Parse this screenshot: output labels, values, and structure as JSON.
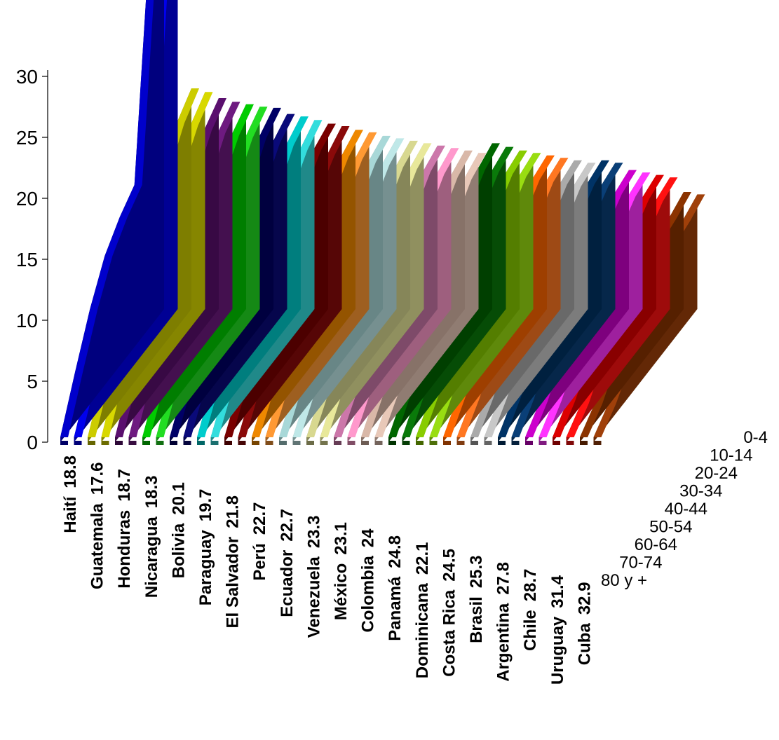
{
  "chart_data": {
    "type": "area",
    "view": "3d-stacked-ribbons",
    "title": "",
    "xlabel": "",
    "ylabel": "",
    "ylim": [
      0,
      33
    ],
    "y_ticks": [
      "0",
      "5",
      "10",
      "15",
      "20",
      "25",
      "30"
    ],
    "depth_ticks": [
      "0-4",
      "10-14",
      "20-24",
      "30-34",
      "40-44",
      "50-54",
      "60-64",
      "70-74",
      "80 y +"
    ],
    "grid": false,
    "legend": "none",
    "categories": [
      {
        "label": "Haití",
        "value": "18.8",
        "color": "#0000cc"
      },
      {
        "label": "Guatemala",
        "value": "17.6",
        "color": "#0000ee"
      },
      {
        "label": "Honduras",
        "value": "18.7",
        "color": "#cccc00"
      },
      {
        "label": "Nicaragua",
        "value": "18.3",
        "color": "#d8d800"
      },
      {
        "label": "Bolivia",
        "value": "20.1",
        "color": "#5a0f6e"
      },
      {
        "label": "Paraguay",
        "value": "19.7",
        "color": "#6e1a80"
      },
      {
        "label": "El Salvador",
        "value": "21.8",
        "color": "#00cc00"
      },
      {
        "label": "Perú",
        "value": "22.7",
        "color": "#22dd22"
      },
      {
        "label": "Ecuador",
        "value": "22.7",
        "color": "#000066"
      },
      {
        "label": "Venezuela",
        "value": "23.3",
        "color": "#0a0a7a"
      },
      {
        "label": "México",
        "value": "23.1",
        "color": "#00cccc"
      },
      {
        "label": "Colombia",
        "value": "24",
        "color": "#33dddd"
      },
      {
        "label": "Panamá",
        "value": "24.8",
        "color": "#7a0000"
      },
      {
        "label": "Dominicana",
        "value": "22.1",
        "color": "#8a0a0a"
      },
      {
        "label": "Costa Rica",
        "value": "24.5",
        "color": "#ee8800"
      },
      {
        "label": "Brasil",
        "value": "25.3",
        "color": "#ff9933"
      },
      {
        "label": "Argentina",
        "value": "27.8",
        "color": "#a8d8d8"
      },
      {
        "label": "Chile",
        "value": "28.7",
        "color": "#bfe8e8"
      },
      {
        "label": "Uruguay",
        "value": "31.4",
        "color": "#d8d890"
      },
      {
        "label": "Cuba",
        "value": "32.9",
        "color": "#e8e89a"
      }
    ],
    "ribbons": [
      {
        "color": "#0000cc",
        "values": [
          0.4,
          4.2,
          7.8,
          10.6,
          12.2,
          13.3,
          31.3,
          33.0
        ]
      },
      {
        "color": "#0000ee",
        "values": [
          0.4,
          3.8,
          7.4,
          10.6,
          12.2,
          13.5,
          32.0,
          33.0
        ]
      },
      {
        "color": "#cccc00",
        "values": [
          0.4,
          3.8,
          7.0,
          10.0,
          12.4,
          14.4,
          16.8,
          18.1
        ]
      },
      {
        "color": "#d8d800",
        "values": [
          0.4,
          3.8,
          7.0,
          10.0,
          12.4,
          14.4,
          16.6,
          17.8
        ]
      },
      {
        "color": "#5a0f6e",
        "values": [
          0.4,
          3.6,
          6.8,
          9.8,
          12.0,
          14.0,
          16.2,
          17.3
        ]
      },
      {
        "color": "#6e1a80",
        "values": [
          0.4,
          3.6,
          6.8,
          9.8,
          12.0,
          13.8,
          16.0,
          17.0
        ]
      },
      {
        "color": "#00cc00",
        "values": [
          0.4,
          3.4,
          6.6,
          9.6,
          11.8,
          13.8,
          15.8,
          16.8
        ]
      },
      {
        "color": "#22dd22",
        "values": [
          0.4,
          3.4,
          6.6,
          9.6,
          11.8,
          13.6,
          15.6,
          16.6
        ]
      },
      {
        "color": "#000066",
        "values": [
          0.4,
          3.2,
          6.4,
          9.2,
          11.4,
          13.4,
          15.6,
          16.5
        ]
      },
      {
        "color": "#0a0a7a",
        "values": [
          0.4,
          3.2,
          6.2,
          9.2,
          11.4,
          13.2,
          15.2,
          16.0
        ]
      },
      {
        "color": "#00cccc",
        "values": [
          0.4,
          3.2,
          6.2,
          9.0,
          11.2,
          13.0,
          15.0,
          15.8
        ]
      },
      {
        "color": "#33dddd",
        "values": [
          0.4,
          3.0,
          6.0,
          9.0,
          11.0,
          12.8,
          14.6,
          15.5
        ]
      },
      {
        "color": "#7a0000",
        "values": [
          0.4,
          3.0,
          5.8,
          8.8,
          11.4,
          13.0,
          14.6,
          15.2
        ]
      },
      {
        "color": "#8a0a0a",
        "values": [
          0.4,
          3.0,
          5.8,
          8.8,
          11.2,
          12.8,
          14.2,
          15.0
        ]
      },
      {
        "color": "#ee8800",
        "values": [
          0.4,
          2.8,
          5.6,
          8.6,
          10.6,
          12.4,
          14.0,
          14.7
        ]
      },
      {
        "color": "#ff9933",
        "values": [
          0.4,
          2.8,
          5.6,
          8.4,
          10.4,
          12.2,
          13.8,
          14.5
        ]
      },
      {
        "color": "#a8d8d8",
        "values": [
          0.4,
          2.8,
          5.4,
          8.2,
          10.4,
          12.0,
          13.6,
          14.2
        ]
      },
      {
        "color": "#bfe8e8",
        "values": [
          0.4,
          2.6,
          5.2,
          8.0,
          10.2,
          11.8,
          13.4,
          14.0
        ]
      },
      {
        "color": "#d8d890",
        "values": [
          0.4,
          2.6,
          5.2,
          8.0,
          10.0,
          11.6,
          13.2,
          13.8
        ]
      },
      {
        "color": "#e8e89a",
        "values": [
          0.4,
          2.6,
          5.0,
          7.8,
          9.8,
          11.4,
          13.0,
          13.6
        ]
      },
      {
        "color": "#cc77aa",
        "values": [
          0.4,
          2.4,
          4.8,
          7.6,
          9.6,
          11.2,
          12.8,
          13.4
        ]
      },
      {
        "color": "#ff99cc",
        "values": [
          0.4,
          2.4,
          4.8,
          7.4,
          9.4,
          11.0,
          12.6,
          13.2
        ]
      },
      {
        "color": "#d9b8a8",
        "values": [
          0.4,
          2.4,
          4.6,
          7.2,
          9.2,
          10.8,
          12.4,
          13.0
        ]
      },
      {
        "color": "#e8c8b8",
        "values": [
          0.4,
          2.2,
          4.6,
          7.2,
          9.0,
          10.6,
          12.2,
          12.8
        ]
      },
      {
        "color": "#006600",
        "values": [
          0.4,
          2.4,
          5.0,
          8.0,
          10.2,
          11.6,
          13.0,
          13.6
        ]
      },
      {
        "color": "#0a7a0a",
        "values": [
          0.4,
          2.4,
          5.0,
          7.8,
          10.0,
          11.4,
          12.8,
          13.3
        ]
      },
      {
        "color": "#88cc00",
        "values": [
          0.4,
          2.2,
          4.8,
          7.6,
          9.6,
          11.2,
          12.6,
          13.0
        ]
      },
      {
        "color": "#99dd11",
        "values": [
          0.4,
          2.2,
          4.6,
          7.4,
          9.4,
          11.0,
          12.4,
          12.8
        ]
      },
      {
        "color": "#ff6600",
        "values": [
          0.4,
          2.2,
          4.4,
          7.0,
          9.0,
          10.8,
          12.2,
          12.6
        ]
      },
      {
        "color": "#ff7722",
        "values": [
          0.4,
          2.0,
          4.2,
          6.8,
          8.8,
          10.6,
          12.0,
          12.4
        ]
      },
      {
        "color": "#aaaaaa",
        "values": [
          0.4,
          2.0,
          4.2,
          6.6,
          8.6,
          10.4,
          11.8,
          12.2
        ]
      },
      {
        "color": "#c8c8c8",
        "values": [
          0.4,
          2.0,
          4.0,
          6.4,
          8.4,
          10.2,
          11.6,
          12.0
        ]
      },
      {
        "color": "#003366",
        "values": [
          0.4,
          2.0,
          4.2,
          6.8,
          8.8,
          10.6,
          11.8,
          12.2
        ]
      },
      {
        "color": "#0a3f77",
        "values": [
          0.4,
          2.0,
          4.2,
          6.6,
          8.6,
          10.4,
          11.6,
          12.0
        ]
      },
      {
        "color": "#cc00cc",
        "values": [
          0.4,
          1.8,
          4.0,
          6.4,
          8.2,
          9.8,
          11.0,
          11.4
        ]
      },
      {
        "color": "#ff33ff",
        "values": [
          0.4,
          1.8,
          3.8,
          6.2,
          8.0,
          9.6,
          10.8,
          11.2
        ]
      },
      {
        "color": "#dd0000",
        "values": [
          0.4,
          1.8,
          3.8,
          6.0,
          7.8,
          9.4,
          10.6,
          11.0
        ]
      },
      {
        "color": "#ff1111",
        "values": [
          0.4,
          1.6,
          3.6,
          5.8,
          7.6,
          9.2,
          10.4,
          10.8
        ]
      },
      {
        "color": "#8b3300",
        "values": [
          0.4,
          1.6,
          3.6,
          5.4,
          7.8,
          8.6,
          9.0,
          9.6
        ]
      },
      {
        "color": "#a0400a",
        "values": [
          0.4,
          1.6,
          3.4,
          5.6,
          7.4,
          8.4,
          8.8,
          9.4
        ]
      }
    ]
  }
}
